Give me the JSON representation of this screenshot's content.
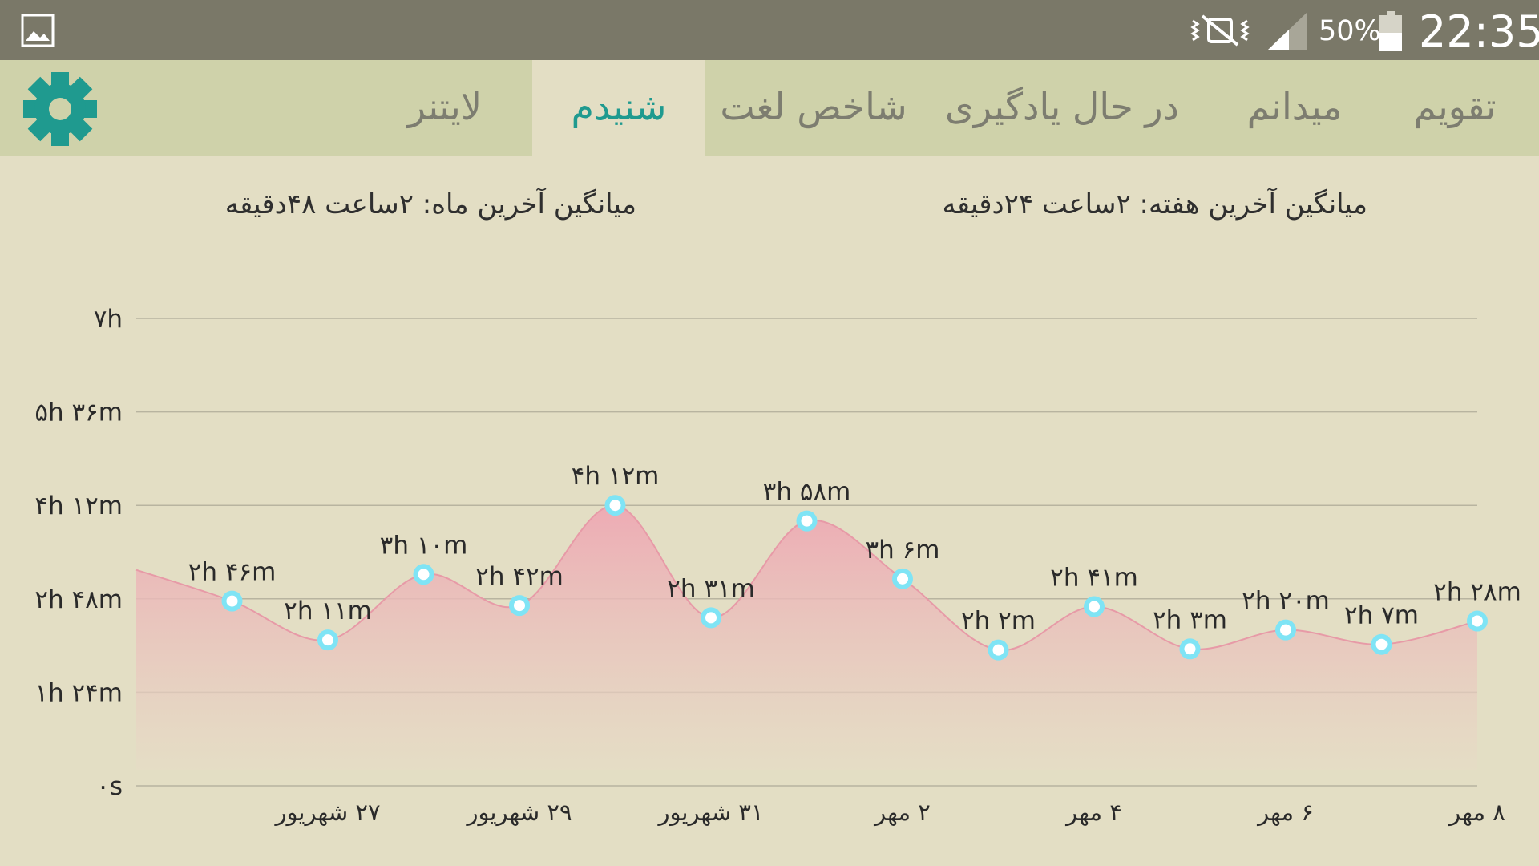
{
  "status_bar": {
    "battery": "50%",
    "time": "22:35",
    "icons": [
      "image-icon",
      "mute-icon",
      "signal-icon",
      "battery-icon"
    ]
  },
  "tabs": [
    {
      "label": "تقویم",
      "active": false
    },
    {
      "label": "میدانم",
      "active": false
    },
    {
      "label": "در حال یادگیری",
      "active": false
    },
    {
      "label": "شاخص لغت",
      "active": false
    },
    {
      "label": "شنیدم",
      "active": true
    },
    {
      "label": "لایتنر",
      "active": false
    }
  ],
  "settings_icon": "gear-icon",
  "averages": {
    "week": "میانگین آخرین هفته: ۲ساعت  ۲۴دقیقه",
    "month": "میانگین آخرین ماه: ۲ساعت  ۴۸دقیقه"
  },
  "colors": {
    "accent": "#1f9a8f",
    "area_top": "#eea8b3",
    "area_bottom": "#e6dcc6",
    "point": "#7fe4f5",
    "status_bar": "#7a7868",
    "tab_bar": "#cfd2aa",
    "background": "#e3dec4"
  },
  "chart_data": {
    "type": "area",
    "x": [
      "۸ مهر",
      "۷ مهر",
      "۶ مهر",
      "۵ مهر",
      "۴ مهر",
      "۳ مهر",
      "۲ مهر",
      "۱ مهر",
      "۳۱ شهریور",
      "۳۰ شهریور",
      "۲۹ شهریور",
      "۲۸ شهریور",
      "۲۷ شهریور",
      "۲۶ شهریور",
      "۲۵ شهریور"
    ],
    "values_minutes": [
      148,
      127,
      140,
      123,
      161,
      122,
      186,
      238,
      151,
      252,
      162,
      190,
      131,
      166,
      194
    ],
    "data_labels": [
      "۲h ۲۸m",
      "۲h ۷m",
      "۲h ۲۰m",
      "۲h ۳m",
      "۲h ۴۱m",
      "۲h ۲m",
      "۳h ۶m",
      "۳h ۵۸m",
      "۲h ۳۱m",
      "۴h ۱۲m",
      "۲h ۴۲m",
      "۳h ۱۰m",
      "۲h ۱۱m",
      "۲h ۴۶m",
      ""
    ],
    "x_tick_labels": [
      "۸ مهر",
      "۶ مهر",
      "۴ مهر",
      "۲ مهر",
      "۳۱ شهریور",
      "۲۹ شهریور",
      "۲۷ شهریور"
    ],
    "y_ticks": [
      {
        "value": 0,
        "label": "۰s"
      },
      {
        "value": 84,
        "label": "۱h ۲۴m"
      },
      {
        "value": 168,
        "label": "۲h ۴۸m"
      },
      {
        "value": 252,
        "label": "۴h ۱۲m"
      },
      {
        "value": 336,
        "label": "۵h ۳۶m"
      },
      {
        "value": 420,
        "label": "۷h"
      }
    ],
    "ylim": [
      0,
      420
    ],
    "x_direction": "right-to-left",
    "grid": true,
    "legend": "none"
  }
}
